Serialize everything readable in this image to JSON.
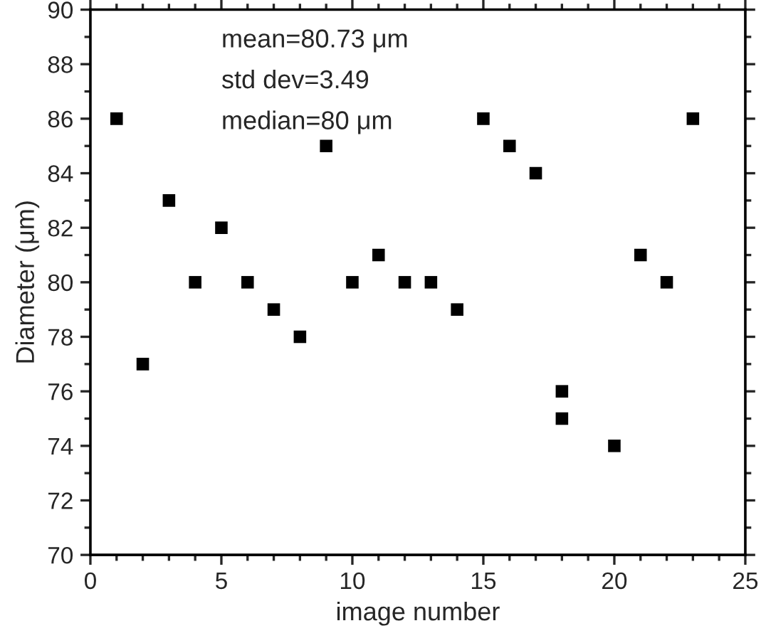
{
  "chart_data": {
    "type": "scatter",
    "xlabel": "image number",
    "ylabel": "Diameter (μm)",
    "x": [
      1,
      2,
      3,
      4,
      5,
      6,
      7,
      8,
      9,
      10,
      11,
      12,
      13,
      14,
      15,
      16,
      17,
      18,
      18,
      20,
      21,
      22,
      23
    ],
    "series": [
      {
        "color": "#000000",
        "values": [
          86,
          77,
          83,
          80,
          82,
          80,
          79,
          78,
          85,
          80,
          81,
          80,
          80,
          79,
          86,
          85,
          84,
          76,
          75,
          74,
          81,
          80,
          86
        ]
      }
    ],
    "xlim": [
      0,
      25
    ],
    "xticks": [
      0,
      5,
      10,
      15,
      20,
      25
    ],
    "ylim": [
      70,
      90
    ],
    "yticks": [
      70,
      72,
      74,
      76,
      78,
      80,
      82,
      84,
      86,
      88,
      90
    ],
    "marker": "square",
    "grid": false,
    "legend": false,
    "annotations": [
      "mean=80.73 μm",
      "std dev=3.49",
      "median=80 μm"
    ]
  }
}
